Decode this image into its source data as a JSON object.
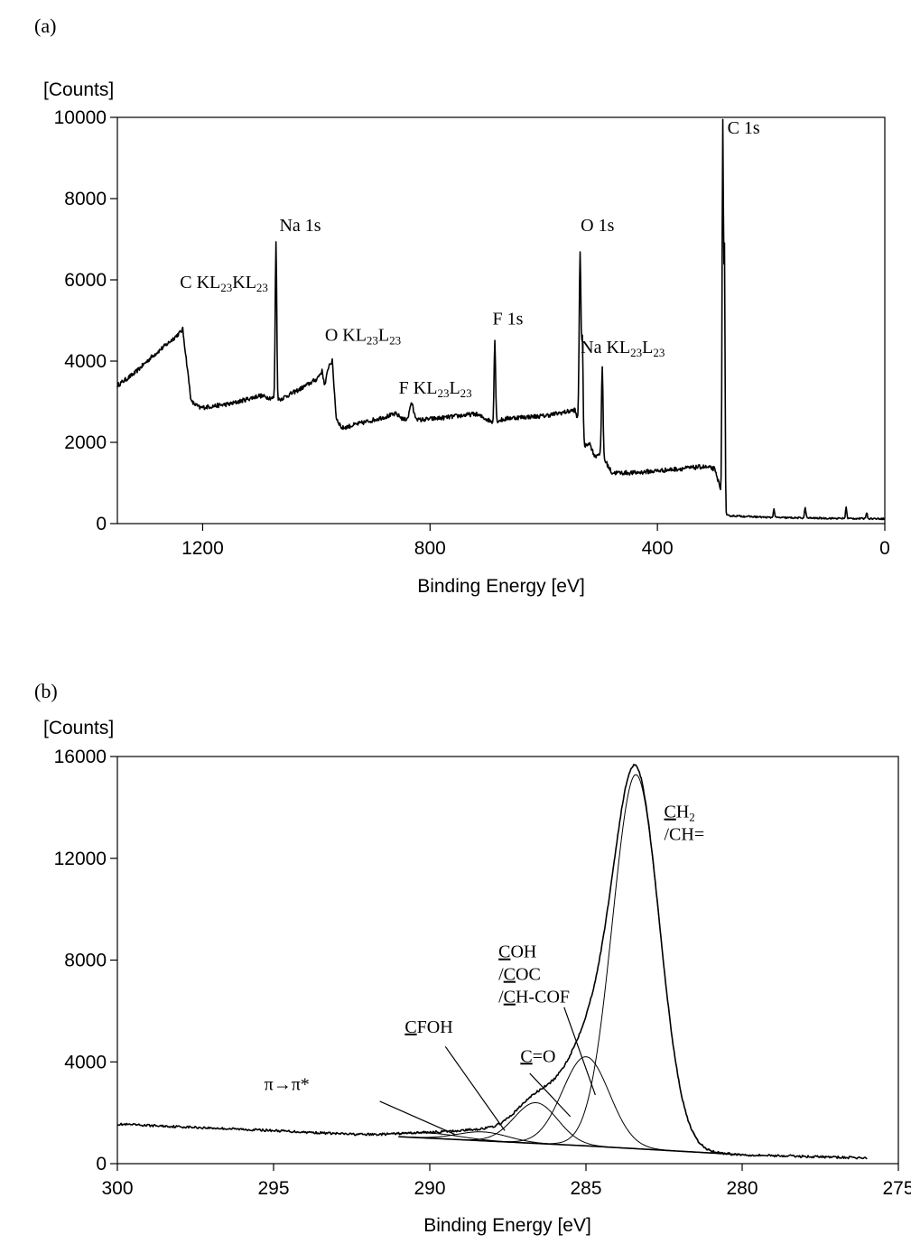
{
  "chart_data": [
    {
      "panel": "(a)",
      "type": "line",
      "ylabel": "[Counts]",
      "xlabel": "Binding Energy [eV]",
      "xlim": [
        1350,
        0
      ],
      "ylim": [
        0,
        10000
      ],
      "xticks": [
        1200,
        800,
        400,
        0
      ],
      "yticks": [
        0,
        2000,
        4000,
        6000,
        8000,
        10000
      ],
      "x_reversed": true,
      "grid": false,
      "annotations": [
        {
          "id": "ckll",
          "main": "C KL",
          "s1": "23",
          "mid": "KL",
          "s2": "23",
          "x": 1240,
          "y": 5800
        },
        {
          "id": "na1s",
          "main": "Na 1s",
          "x": 1065,
          "y": 7200
        },
        {
          "id": "okll",
          "main": "O KL",
          "s1": "23",
          "mid": "L",
          "s2": "23",
          "x": 985,
          "y": 4500
        },
        {
          "id": "fkll",
          "main": "F KL",
          "s1": "23",
          "mid": "L",
          "s2": "23",
          "x": 855,
          "y": 3200
        },
        {
          "id": "f1s",
          "main": "F 1s",
          "x": 690,
          "y": 4900
        },
        {
          "id": "o1s",
          "main": "O 1s",
          "x": 535,
          "y": 7200
        },
        {
          "id": "nakll",
          "main": "Na KL",
          "s1": "23",
          "mid": "L",
          "s2": "23",
          "x": 535,
          "y": 4200
        },
        {
          "id": "c1s",
          "main": "C 1s",
          "x": 277,
          "y": 9600
        }
      ]
    },
    {
      "panel": "(b)",
      "type": "line",
      "ylabel": "[Counts]",
      "xlabel": "Binding Energy [eV]",
      "xlim": [
        300,
        275
      ],
      "ylim": [
        0,
        16000
      ],
      "xticks": [
        300,
        295,
        290,
        285,
        280,
        275
      ],
      "yticks": [
        0,
        4000,
        8000,
        12000,
        16000
      ],
      "x_reversed": true,
      "grid": false,
      "background": [
        [
          300,
          1550
        ],
        [
          295,
          1300
        ],
        [
          290,
          1000
        ],
        [
          285,
          700
        ],
        [
          280,
          350
        ],
        [
          276,
          220
        ]
      ],
      "components": [
        {
          "name": "CH2 /CH=",
          "center": 283.4,
          "height": 14700,
          "sigma": 0.75
        },
        {
          "name": "COH /COC /CH-COF",
          "center": 285.0,
          "height": 3500,
          "sigma": 0.75
        },
        {
          "name": "C=O",
          "center": 286.6,
          "height": 1600,
          "sigma": 0.7
        },
        {
          "name": "CFOH",
          "center": 288.3,
          "height": 350,
          "sigma": 0.8
        },
        {
          "name": "π→π*",
          "center": 290.0,
          "height": 200,
          "sigma": 1.0
        }
      ],
      "annotations": [
        {
          "id": "ch2",
          "lines": [
            {
              "u": "C",
              "t": "H",
              "sub": "2"
            },
            {
              "t": "/CH="
            }
          ]
        },
        {
          "id": "coh",
          "lines": [
            {
              "u": "C",
              "t": "OH"
            },
            {
              "p": "/",
              "u": "C",
              "t": "OC"
            },
            {
              "p": "/",
              "u": "C",
              "t": "H-COF"
            }
          ]
        },
        {
          "id": "co",
          "lines": [
            {
              "u": "C",
              "t": "=O"
            }
          ]
        },
        {
          "id": "cfoh",
          "lines": [
            {
              "u": "C",
              "t": "FOH"
            }
          ]
        },
        {
          "id": "pi",
          "lines": [
            {
              "t": "π→π*"
            }
          ]
        }
      ]
    }
  ]
}
